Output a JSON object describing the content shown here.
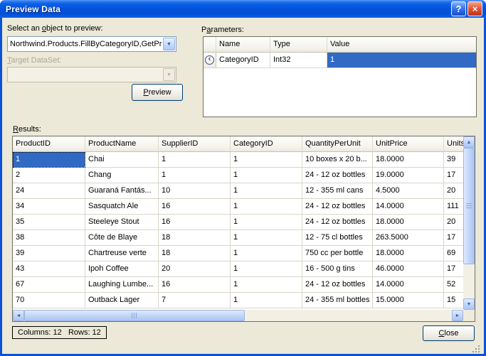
{
  "window": {
    "title": "Preview Data"
  },
  "titlebar_icons": {
    "help": "?",
    "close": "×"
  },
  "labels": {
    "object_select": {
      "text": "Select an object to preview:",
      "hotkey": "o"
    },
    "target_dataset": {
      "text": "Target DataSet:",
      "hotkey": "T"
    },
    "parameters": {
      "text": "Parameters:",
      "hotkey": "a"
    },
    "results": {
      "text": "Results:",
      "hotkey": "R"
    }
  },
  "buttons": {
    "preview": {
      "text": "Preview",
      "hotkey": "P"
    },
    "close": {
      "text": "Close",
      "hotkey": "C"
    }
  },
  "object_selector": {
    "value": "Northwind.Products.FillByCategoryID,GetProd"
  },
  "target_dataset": {
    "value": ""
  },
  "parameters_table": {
    "columns": [
      "Name",
      "Type",
      "Value"
    ],
    "rows": [
      {
        "name": "CategoryID",
        "type": "Int32",
        "value": "1"
      }
    ]
  },
  "results_table": {
    "columns": [
      "ProductID",
      "ProductName",
      "SupplierID",
      "CategoryID",
      "QuantityPerUnit",
      "UnitPrice",
      "UnitsI"
    ],
    "rows": [
      [
        "1",
        "Chai",
        "1",
        "1",
        "10 boxes x 20 b...",
        "18.0000",
        "39"
      ],
      [
        "2",
        "Chang",
        "1",
        "1",
        "24 - 12 oz bottles",
        "19.0000",
        "17"
      ],
      [
        "24",
        "Guaraná Fantás...",
        "10",
        "1",
        "12 - 355 ml cans",
        "4.5000",
        "20"
      ],
      [
        "34",
        "Sasquatch Ale",
        "16",
        "1",
        "24 - 12 oz bottles",
        "14.0000",
        "111"
      ],
      [
        "35",
        "Steeleye Stout",
        "16",
        "1",
        "24 - 12 oz bottles",
        "18.0000",
        "20"
      ],
      [
        "38",
        "Côte de Blaye",
        "18",
        "1",
        "12 - 75 cl bottles",
        "263.5000",
        "17"
      ],
      [
        "39",
        "Chartreuse verte",
        "18",
        "1",
        "750 cc per bottle",
        "18.0000",
        "69"
      ],
      [
        "43",
        "Ipoh Coffee",
        "20",
        "1",
        "16 - 500 g tins",
        "46.0000",
        "17"
      ],
      [
        "67",
        "Laughing Lumbe...",
        "16",
        "1",
        "24 - 12 oz bottles",
        "14.0000",
        "52"
      ],
      [
        "70",
        "Outback Lager",
        "7",
        "1",
        "24 - 355 ml bottles",
        "15.0000",
        "15"
      ]
    ],
    "selected_cell": {
      "row": 0,
      "col": 0
    }
  },
  "status": {
    "columns": "Columns: 12",
    "rows": "Rows: 12"
  },
  "icons": {
    "combo_arrow": "▼",
    "param_direction": "‹",
    "scroll_up": "▲",
    "scroll_down": "▼",
    "scroll_left": "◄",
    "scroll_right": "►"
  },
  "colors": {
    "selection": "#316AC5",
    "dialog_bg": "#ECE9D8",
    "titlebar_blue": "#0353DC"
  }
}
